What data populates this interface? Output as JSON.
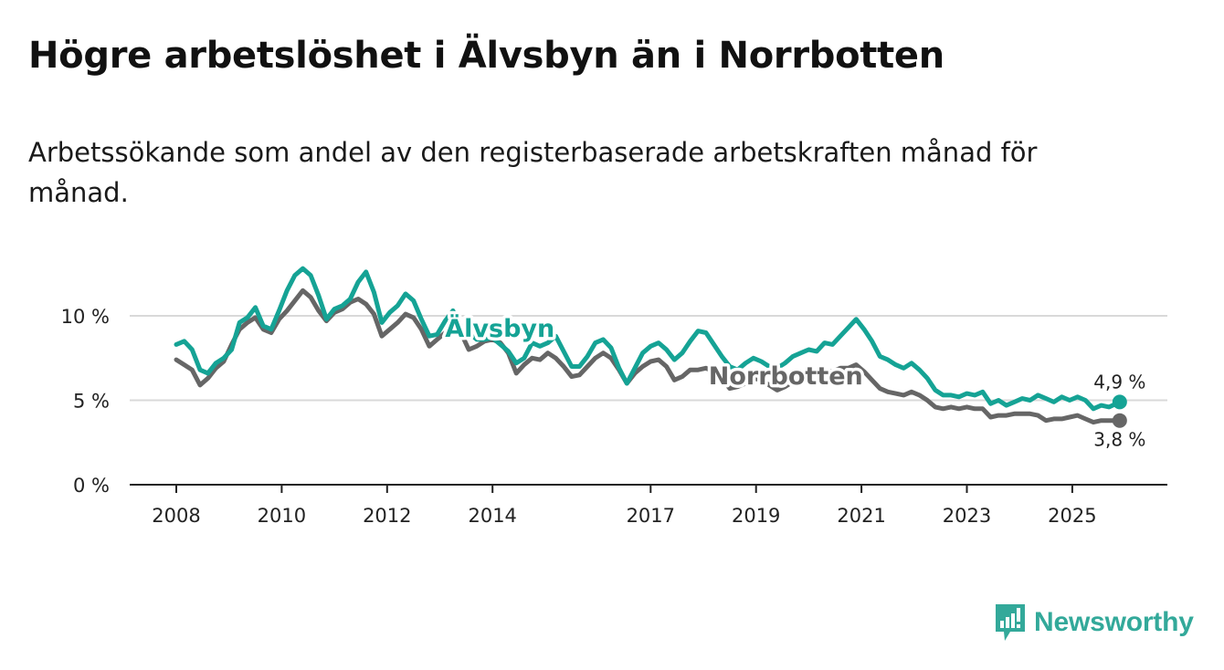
{
  "title": "Högre arbetslöshet i Älvsbyn än i Norrbotten",
  "subtitle": "Arbetssökande som andel av den registerbaserade arbetskraften månad för månad.",
  "brand": "Newsworthy",
  "colors": {
    "alvsbyn": "#15a395",
    "norrbotten": "#666666",
    "grid": "#d9d9d9",
    "brand": "#33a99a"
  },
  "chart_data": {
    "type": "line",
    "title": "Högre arbetslöshet i Älvsbyn än i Norrbotten",
    "xlabel": "",
    "ylabel": "",
    "xlim": [
      2008,
      2026.3
    ],
    "ylim": [
      0,
      12
    ],
    "x_ticks": [
      2008,
      2010,
      2012,
      2014,
      2017,
      2019,
      2021,
      2023,
      2025
    ],
    "y_ticks": [
      {
        "value": 0,
        "label": "0 %"
      },
      {
        "value": 5,
        "label": "5 %"
      },
      {
        "value": 10,
        "label": "10 %"
      }
    ],
    "grid": true,
    "series": [
      {
        "name": "Älvsbyn",
        "label": "Älvsbyn",
        "end_label": "4,9 %",
        "points": [
          [
            2008.0,
            8.3
          ],
          [
            2008.15,
            8.5
          ],
          [
            2008.3,
            8.0
          ],
          [
            2008.45,
            6.8
          ],
          [
            2008.6,
            6.6
          ],
          [
            2008.75,
            7.2
          ],
          [
            2008.9,
            7.5
          ],
          [
            2009.05,
            8.0
          ],
          [
            2009.2,
            9.6
          ],
          [
            2009.35,
            9.9
          ],
          [
            2009.5,
            10.5
          ],
          [
            2009.65,
            9.4
          ],
          [
            2009.8,
            9.2
          ],
          [
            2009.95,
            10.3
          ],
          [
            2010.1,
            11.5
          ],
          [
            2010.25,
            12.4
          ],
          [
            2010.4,
            12.8
          ],
          [
            2010.55,
            12.4
          ],
          [
            2010.7,
            11.2
          ],
          [
            2010.85,
            9.8
          ],
          [
            2011.0,
            10.4
          ],
          [
            2011.15,
            10.6
          ],
          [
            2011.3,
            11.0
          ],
          [
            2011.45,
            12.0
          ],
          [
            2011.6,
            12.6
          ],
          [
            2011.75,
            11.4
          ],
          [
            2011.9,
            9.6
          ],
          [
            2012.05,
            10.2
          ],
          [
            2012.2,
            10.6
          ],
          [
            2012.35,
            11.3
          ],
          [
            2012.5,
            10.9
          ],
          [
            2012.65,
            9.8
          ],
          [
            2012.8,
            8.8
          ],
          [
            2012.95,
            8.9
          ],
          [
            2013.1,
            9.7
          ],
          [
            2013.25,
            10.3
          ],
          [
            2013.4,
            9.4
          ],
          [
            2013.55,
            9.0
          ],
          [
            2013.7,
            8.6
          ],
          [
            2013.85,
            8.6
          ],
          [
            2014.0,
            8.7
          ],
          [
            2014.15,
            8.3
          ],
          [
            2014.3,
            7.9
          ],
          [
            2014.45,
            7.2
          ],
          [
            2014.6,
            7.5
          ],
          [
            2014.75,
            8.4
          ],
          [
            2014.9,
            8.2
          ],
          [
            2015.05,
            8.4
          ],
          [
            2015.2,
            8.8
          ],
          [
            2015.35,
            7.9
          ],
          [
            2015.5,
            7.0
          ],
          [
            2015.65,
            7.0
          ],
          [
            2015.8,
            7.6
          ],
          [
            2015.95,
            8.4
          ],
          [
            2016.1,
            8.6
          ],
          [
            2016.25,
            8.1
          ],
          [
            2016.4,
            6.9
          ],
          [
            2016.55,
            6.0
          ],
          [
            2016.7,
            6.9
          ],
          [
            2016.85,
            7.8
          ],
          [
            2017.0,
            8.2
          ],
          [
            2017.15,
            8.4
          ],
          [
            2017.3,
            8.0
          ],
          [
            2017.45,
            7.4
          ],
          [
            2017.6,
            7.8
          ],
          [
            2017.75,
            8.5
          ],
          [
            2017.9,
            9.1
          ],
          [
            2018.05,
            9.0
          ],
          [
            2018.2,
            8.3
          ],
          [
            2018.35,
            7.6
          ],
          [
            2018.5,
            7.0
          ],
          [
            2018.65,
            6.8
          ],
          [
            2018.8,
            7.2
          ],
          [
            2018.95,
            7.5
          ],
          [
            2019.1,
            7.3
          ],
          [
            2019.25,
            7.0
          ],
          [
            2019.4,
            6.9
          ],
          [
            2019.55,
            7.2
          ],
          [
            2019.7,
            7.6
          ],
          [
            2019.85,
            7.8
          ],
          [
            2020.0,
            8.0
          ],
          [
            2020.15,
            7.9
          ],
          [
            2020.3,
            8.4
          ],
          [
            2020.45,
            8.3
          ],
          [
            2020.6,
            8.8
          ],
          [
            2020.75,
            9.3
          ],
          [
            2020.9,
            9.8
          ],
          [
            2021.05,
            9.2
          ],
          [
            2021.2,
            8.5
          ],
          [
            2021.35,
            7.6
          ],
          [
            2021.5,
            7.4
          ],
          [
            2021.65,
            7.1
          ],
          [
            2021.8,
            6.9
          ],
          [
            2021.95,
            7.2
          ],
          [
            2022.1,
            6.8
          ],
          [
            2022.25,
            6.3
          ],
          [
            2022.4,
            5.6
          ],
          [
            2022.55,
            5.3
          ],
          [
            2022.7,
            5.3
          ],
          [
            2022.85,
            5.2
          ],
          [
            2023.0,
            5.4
          ],
          [
            2023.15,
            5.3
          ],
          [
            2023.3,
            5.5
          ],
          [
            2023.45,
            4.8
          ],
          [
            2023.6,
            5.0
          ],
          [
            2023.75,
            4.7
          ],
          [
            2023.9,
            4.9
          ],
          [
            2024.05,
            5.1
          ],
          [
            2024.2,
            5.0
          ],
          [
            2024.35,
            5.3
          ],
          [
            2024.5,
            5.1
          ],
          [
            2024.65,
            4.9
          ],
          [
            2024.8,
            5.2
          ],
          [
            2024.95,
            5.0
          ],
          [
            2025.1,
            5.2
          ],
          [
            2025.25,
            5.0
          ],
          [
            2025.4,
            4.5
          ],
          [
            2025.55,
            4.7
          ],
          [
            2025.7,
            4.6
          ],
          [
            2025.9,
            4.9
          ]
        ]
      },
      {
        "name": "Norrbotten",
        "label": "Norrbotten",
        "end_label": "3,8 %",
        "points": [
          [
            2008.0,
            7.4
          ],
          [
            2008.15,
            7.1
          ],
          [
            2008.3,
            6.8
          ],
          [
            2008.45,
            5.9
          ],
          [
            2008.6,
            6.3
          ],
          [
            2008.75,
            6.9
          ],
          [
            2008.9,
            7.3
          ],
          [
            2009.05,
            8.3
          ],
          [
            2009.2,
            9.2
          ],
          [
            2009.35,
            9.6
          ],
          [
            2009.5,
            9.9
          ],
          [
            2009.65,
            9.2
          ],
          [
            2009.8,
            9.0
          ],
          [
            2009.95,
            9.8
          ],
          [
            2010.1,
            10.3
          ],
          [
            2010.25,
            10.9
          ],
          [
            2010.4,
            11.5
          ],
          [
            2010.55,
            11.1
          ],
          [
            2010.7,
            10.3
          ],
          [
            2010.85,
            9.7
          ],
          [
            2011.0,
            10.2
          ],
          [
            2011.15,
            10.4
          ],
          [
            2011.3,
            10.8
          ],
          [
            2011.45,
            11.0
          ],
          [
            2011.6,
            10.7
          ],
          [
            2011.75,
            10.1
          ],
          [
            2011.9,
            8.8
          ],
          [
            2012.05,
            9.2
          ],
          [
            2012.2,
            9.6
          ],
          [
            2012.35,
            10.1
          ],
          [
            2012.5,
            9.9
          ],
          [
            2012.65,
            9.2
          ],
          [
            2012.8,
            8.2
          ],
          [
            2012.95,
            8.6
          ],
          [
            2013.1,
            9.0
          ],
          [
            2013.25,
            9.4
          ],
          [
            2013.4,
            9.0
          ],
          [
            2013.55,
            8.0
          ],
          [
            2013.7,
            8.2
          ],
          [
            2013.85,
            8.5
          ],
          [
            2014.0,
            8.6
          ],
          [
            2014.15,
            8.4
          ],
          [
            2014.3,
            7.8
          ],
          [
            2014.45,
            6.6
          ],
          [
            2014.6,
            7.1
          ],
          [
            2014.75,
            7.5
          ],
          [
            2014.9,
            7.4
          ],
          [
            2015.05,
            7.8
          ],
          [
            2015.2,
            7.5
          ],
          [
            2015.35,
            7.0
          ],
          [
            2015.5,
            6.4
          ],
          [
            2015.65,
            6.5
          ],
          [
            2015.8,
            7.0
          ],
          [
            2015.95,
            7.5
          ],
          [
            2016.1,
            7.8
          ],
          [
            2016.25,
            7.5
          ],
          [
            2016.4,
            6.8
          ],
          [
            2016.55,
            6.0
          ],
          [
            2016.7,
            6.6
          ],
          [
            2016.85,
            7.0
          ],
          [
            2017.0,
            7.3
          ],
          [
            2017.15,
            7.4
          ],
          [
            2017.3,
            7.0
          ],
          [
            2017.45,
            6.2
          ],
          [
            2017.6,
            6.4
          ],
          [
            2017.75,
            6.8
          ],
          [
            2017.9,
            6.8
          ],
          [
            2018.05,
            6.9
          ],
          [
            2018.2,
            6.7
          ],
          [
            2018.35,
            6.3
          ],
          [
            2018.5,
            5.7
          ],
          [
            2018.65,
            5.8
          ],
          [
            2018.8,
            6.0
          ],
          [
            2018.95,
            6.3
          ],
          [
            2019.1,
            6.2
          ],
          [
            2019.25,
            5.9
          ],
          [
            2019.4,
            5.6
          ],
          [
            2019.55,
            5.8
          ],
          [
            2019.7,
            6.1
          ],
          [
            2019.85,
            6.3
          ],
          [
            2020.0,
            6.5
          ],
          [
            2020.15,
            6.6
          ],
          [
            2020.3,
            6.8
          ],
          [
            2020.45,
            6.7
          ],
          [
            2020.6,
            6.9
          ],
          [
            2020.75,
            6.9
          ],
          [
            2020.9,
            7.1
          ],
          [
            2021.05,
            6.7
          ],
          [
            2021.2,
            6.2
          ],
          [
            2021.35,
            5.7
          ],
          [
            2021.5,
            5.5
          ],
          [
            2021.65,
            5.4
          ],
          [
            2021.8,
            5.3
          ],
          [
            2021.95,
            5.5
          ],
          [
            2022.1,
            5.3
          ],
          [
            2022.25,
            5.0
          ],
          [
            2022.4,
            4.6
          ],
          [
            2022.55,
            4.5
          ],
          [
            2022.7,
            4.6
          ],
          [
            2022.85,
            4.5
          ],
          [
            2023.0,
            4.6
          ],
          [
            2023.15,
            4.5
          ],
          [
            2023.3,
            4.5
          ],
          [
            2023.45,
            4.0
          ],
          [
            2023.6,
            4.1
          ],
          [
            2023.75,
            4.1
          ],
          [
            2023.9,
            4.2
          ],
          [
            2024.05,
            4.2
          ],
          [
            2024.2,
            4.2
          ],
          [
            2024.35,
            4.1
          ],
          [
            2024.5,
            3.8
          ],
          [
            2024.65,
            3.9
          ],
          [
            2024.8,
            3.9
          ],
          [
            2024.95,
            4.0
          ],
          [
            2025.1,
            4.1
          ],
          [
            2025.25,
            3.9
          ],
          [
            2025.4,
            3.7
          ],
          [
            2025.55,
            3.8
          ],
          [
            2025.7,
            3.8
          ],
          [
            2025.9,
            3.8
          ]
        ]
      }
    ]
  }
}
